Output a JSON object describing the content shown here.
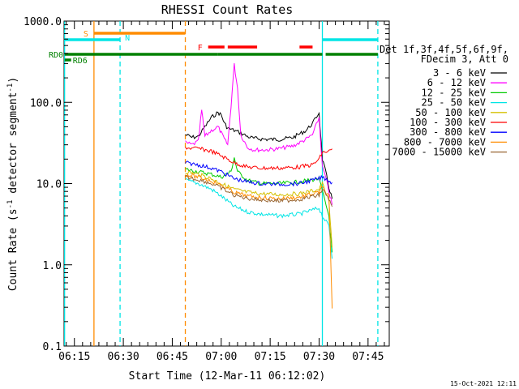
{
  "chart_data": {
    "type": "line",
    "title": "RHESSI Count Rates",
    "xlabel": "Start Time (12-Mar-11 06:12:02)",
    "ylabel_main": "Count Rate (s",
    "ylabel_sup1": "-1",
    "ylabel_mid": " detector segment",
    "ylabel_sup2": "-1",
    "ylabel_end": ")",
    "y_scale": "log",
    "ylim": [
      0.1,
      1000
    ],
    "xlim": [
      "06:11:50",
      "07:51:30"
    ],
    "x_ticks": [
      "06:15",
      "06:30",
      "06:45",
      "07:00",
      "07:15",
      "07:30",
      "07:45"
    ],
    "y_ticks": [
      "0.1",
      "1.0",
      "10.0",
      "100.0",
      "1000.0"
    ],
    "legend": {
      "placement": "right",
      "header": [
        "Det 1f,3f,4f,5f,6f,9f,",
        "FDecim 3, Att 0"
      ],
      "entries": [
        {
          "label": "3 - 6 keV",
          "color": "#000000"
        },
        {
          "label": "6 - 12 keV",
          "color": "#ff00ff"
        },
        {
          "label": "12 - 25 keV",
          "color": "#00cc00"
        },
        {
          "label": "25 - 50 keV",
          "color": "#00e5e5"
        },
        {
          "label": "50 - 100 keV",
          "color": "#d4c000"
        },
        {
          "label": "100 - 300 keV",
          "color": "#ff0000"
        },
        {
          "label": "300 - 800 keV",
          "color": "#0000ff"
        },
        {
          "label": "800 - 7000 keV",
          "color": "#ff8c00"
        },
        {
          "label": "7000 - 15000 keV",
          "color": "#996633"
        }
      ]
    },
    "flags": [
      {
        "label": "S",
        "color": "#ff8c00",
        "segments": [
          [
            "06:21",
            "06:49"
          ]
        ]
      },
      {
        "label": "N",
        "color": "#00e5e5",
        "segments": [
          [
            "06:12",
            "06:29"
          ],
          [
            "07:31",
            "07:48"
          ]
        ]
      },
      {
        "label": "F",
        "color": "#ff0000",
        "segments": [
          [
            "06:56",
            "07:01"
          ],
          [
            "07:02",
            "07:11"
          ],
          [
            "07:24",
            "07:28"
          ]
        ]
      },
      {
        "label": "RD0",
        "color": "#008000",
        "segments": [
          [
            "06:12",
            "06:49"
          ],
          [
            "06:49",
            "06:59"
          ],
          [
            "06:59",
            "07:31"
          ],
          [
            "07:32",
            "07:48"
          ]
        ]
      },
      {
        "label": "RD6",
        "color": "#008000",
        "segments": [
          [
            "06:12",
            "06:14"
          ]
        ]
      }
    ],
    "vlines": [
      {
        "time": "06:12",
        "color": "#00e5e5",
        "style": "solid"
      },
      {
        "time": "06:21",
        "color": "#ff8c00",
        "style": "solid"
      },
      {
        "time": "06:29",
        "color": "#00e5e5",
        "style": "dashed"
      },
      {
        "time": "06:49",
        "color": "#ff8c00",
        "style": "dashed"
      },
      {
        "time": "07:31",
        "color": "#00e5e5",
        "style": "solid"
      },
      {
        "time": "07:48",
        "color": "#00e5e5",
        "style": "dashed"
      }
    ],
    "series": [
      {
        "name": "3 - 6 keV",
        "color": "#000000",
        "points": [
          [
            "06:49",
            40
          ],
          [
            "06:51",
            37
          ],
          [
            "06:53",
            38
          ],
          [
            "06:55",
            50
          ],
          [
            "06:57",
            65
          ],
          [
            "06:59",
            75
          ],
          [
            "07:00",
            70
          ],
          [
            "07:01",
            55
          ],
          [
            "07:02",
            48
          ],
          [
            "07:04",
            45
          ],
          [
            "07:06",
            42
          ],
          [
            "07:08",
            38
          ],
          [
            "07:10",
            36
          ],
          [
            "07:14",
            35
          ],
          [
            "07:18",
            35
          ],
          [
            "07:22",
            37
          ],
          [
            "07:26",
            45
          ],
          [
            "07:28",
            55
          ],
          [
            "07:30",
            75
          ],
          [
            "07:31",
            20
          ],
          [
            "07:32",
            14
          ],
          [
            "07:33",
            9
          ],
          [
            "07:34",
            6.5
          ]
        ]
      },
      {
        "name": "6 - 12 keV",
        "color": "#ff00ff",
        "points": [
          [
            "06:49",
            32
          ],
          [
            "06:51",
            30
          ],
          [
            "06:53",
            33
          ],
          [
            "06:54",
            80
          ],
          [
            "06:55",
            38
          ],
          [
            "06:57",
            45
          ],
          [
            "06:59",
            50
          ],
          [
            "07:00",
            42
          ],
          [
            "07:01",
            35
          ],
          [
            "07:02",
            30
          ],
          [
            "07:03",
            90
          ],
          [
            "07:04",
            290
          ],
          [
            "07:05",
            150
          ],
          [
            "07:06",
            40
          ],
          [
            "07:08",
            28
          ],
          [
            "07:10",
            26
          ],
          [
            "07:14",
            26
          ],
          [
            "07:18",
            27
          ],
          [
            "07:22",
            29
          ],
          [
            "07:26",
            35
          ],
          [
            "07:28",
            40
          ],
          [
            "07:30",
            65
          ],
          [
            "07:31",
            16
          ],
          [
            "07:32",
            12
          ],
          [
            "07:33",
            8
          ],
          [
            "07:34",
            5.5
          ]
        ]
      },
      {
        "name": "12 - 25 keV",
        "color": "#00cc00",
        "points": [
          [
            "06:49",
            15
          ],
          [
            "06:53",
            14
          ],
          [
            "06:57",
            13
          ],
          [
            "07:00",
            12
          ],
          [
            "07:03",
            14
          ],
          [
            "07:04",
            21
          ],
          [
            "07:05",
            14
          ],
          [
            "07:08",
            11
          ],
          [
            "07:12",
            10
          ],
          [
            "07:18",
            10
          ],
          [
            "07:24",
            10.5
          ],
          [
            "07:30",
            11.5
          ],
          [
            "07:31",
            8
          ],
          [
            "07:33",
            4
          ],
          [
            "07:34",
            1.4
          ]
        ]
      },
      {
        "name": "25 - 50 keV",
        "color": "#00e5e5",
        "points": [
          [
            "06:49",
            11
          ],
          [
            "06:53",
            10
          ],
          [
            "06:57",
            8.5
          ],
          [
            "07:00",
            7
          ],
          [
            "07:04",
            5.2
          ],
          [
            "07:08",
            4.5
          ],
          [
            "07:12",
            4.2
          ],
          [
            "07:18",
            4
          ],
          [
            "07:24",
            4.2
          ],
          [
            "07:30",
            5
          ],
          [
            "07:31",
            4
          ],
          [
            "07:33",
            3
          ],
          [
            "07:34",
            1.2
          ]
        ]
      },
      {
        "name": "50 - 100 keV",
        "color": "#d4c000",
        "points": [
          [
            "06:49",
            14
          ],
          [
            "06:53",
            13
          ],
          [
            "06:57",
            11.5
          ],
          [
            "07:00",
            10
          ],
          [
            "07:04",
            8.5
          ],
          [
            "07:08",
            7.8
          ],
          [
            "07:12",
            7.5
          ],
          [
            "07:18",
            7.3
          ],
          [
            "07:24",
            7.5
          ],
          [
            "07:30",
            8.5
          ],
          [
            "07:31",
            10
          ],
          [
            "07:33",
            6
          ],
          [
            "07:34",
            1.6
          ]
        ]
      },
      {
        "name": "100 - 300 keV",
        "color": "#ff0000",
        "points": [
          [
            "06:49",
            28
          ],
          [
            "06:51",
            27
          ],
          [
            "06:53",
            27
          ],
          [
            "06:57",
            25
          ],
          [
            "07:00",
            22
          ],
          [
            "07:04",
            18
          ],
          [
            "07:08",
            16
          ],
          [
            "07:12",
            15.5
          ],
          [
            "07:18",
            15.5
          ],
          [
            "07:24",
            16
          ],
          [
            "07:28",
            17
          ],
          [
            "07:30",
            20
          ],
          [
            "07:31",
            24
          ],
          [
            "07:33",
            25
          ],
          [
            "07:34",
            26
          ]
        ]
      },
      {
        "name": "300 - 800 keV",
        "color": "#0000ff",
        "points": [
          [
            "06:49",
            18
          ],
          [
            "06:53",
            17
          ],
          [
            "06:57",
            15.5
          ],
          [
            "07:00",
            14
          ],
          [
            "07:04",
            11.5
          ],
          [
            "07:08",
            10.5
          ],
          [
            "07:12",
            10
          ],
          [
            "07:18",
            9.8
          ],
          [
            "07:24",
            10
          ],
          [
            "07:30",
            11.5
          ],
          [
            "07:31",
            12
          ],
          [
            "07:33",
            11
          ],
          [
            "07:34",
            10
          ]
        ]
      },
      {
        "name": "800 - 7000 keV",
        "color": "#ff8c00",
        "points": [
          [
            "06:49",
            13
          ],
          [
            "06:53",
            12
          ],
          [
            "06:57",
            10.8
          ],
          [
            "07:00",
            9.5
          ],
          [
            "07:04",
            7.8
          ],
          [
            "07:08",
            7
          ],
          [
            "07:12",
            6.7
          ],
          [
            "07:18",
            6.5
          ],
          [
            "07:24",
            6.8
          ],
          [
            "07:30",
            7.8
          ],
          [
            "07:31",
            9
          ],
          [
            "07:33",
            7
          ],
          [
            "07:34",
            0.28
          ]
        ]
      },
      {
        "name": "7000 - 15000 keV",
        "color": "#996633",
        "points": [
          [
            "06:49",
            12
          ],
          [
            "06:53",
            11.2
          ],
          [
            "06:57",
            10
          ],
          [
            "07:00",
            8.8
          ],
          [
            "07:04",
            7.2
          ],
          [
            "07:08",
            6.6
          ],
          [
            "07:12",
            6.3
          ],
          [
            "07:18",
            6.1
          ],
          [
            "07:24",
            6.4
          ],
          [
            "07:30",
            7.2
          ],
          [
            "07:31",
            8.5
          ],
          [
            "07:33",
            6.5
          ],
          [
            "07:34",
            5
          ]
        ]
      }
    ]
  },
  "footer": {
    "timestamp": "15-Oct-2021 12:11"
  }
}
